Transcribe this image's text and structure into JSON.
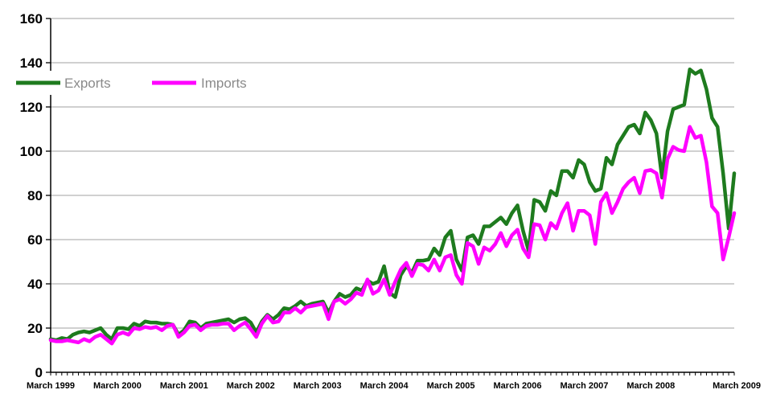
{
  "chart_data": {
    "type": "line",
    "ylim": [
      0,
      160
    ],
    "yticks": [
      0,
      20,
      40,
      60,
      80,
      100,
      120,
      140,
      160
    ],
    "grid": true,
    "legend_position": "top-left",
    "x_labels": [
      "March 1999",
      "March 2000",
      "March 2001",
      "March 2002",
      "March 2003",
      "March 2004",
      "March 2005",
      "March 2006",
      "March 2007",
      "March 2008",
      "March 2009"
    ],
    "x_start": "March 1999",
    "x_end": "March 2009",
    "series": [
      {
        "name": "Exports",
        "color": "#1e7b1e",
        "values": [
          15,
          14.5,
          15.5,
          15,
          17,
          18,
          18.5,
          18,
          19,
          20,
          17,
          15,
          20,
          20,
          19.5,
          22,
          21,
          23,
          22.5,
          22.5,
          22,
          22,
          21.5,
          17,
          19,
          23,
          22.5,
          20,
          22,
          22.5,
          23,
          23.5,
          24,
          22.5,
          24,
          24.5,
          22.5,
          18,
          23,
          26,
          24,
          26,
          29,
          28.5,
          30,
          32,
          30,
          31,
          31.5,
          32,
          27,
          32,
          35.5,
          34,
          35,
          38,
          37,
          41.5,
          40,
          41,
          48,
          36,
          34,
          44,
          48,
          45,
          50.5,
          50.5,
          51,
          56,
          53,
          61,
          64,
          51,
          46,
          61,
          62,
          58,
          66,
          66,
          68,
          70,
          67,
          72,
          75.5,
          64,
          55,
          78,
          77,
          73,
          82,
          80,
          91,
          91,
          88,
          96,
          94,
          86,
          82,
          83,
          97,
          94,
          103,
          107,
          111,
          112,
          108,
          117.5,
          114,
          108,
          88,
          109,
          119,
          120,
          121,
          137,
          135,
          136.5,
          128,
          115,
          111,
          90,
          65,
          90
        ]
      },
      {
        "name": "Imports",
        "color": "#ff00ff",
        "values": [
          14.5,
          14,
          14,
          14.5,
          14,
          13.5,
          15,
          14,
          16,
          17,
          15,
          13,
          17,
          18,
          17,
          20,
          19.5,
          20.5,
          20,
          20.5,
          19,
          21,
          21.5,
          16,
          18,
          21,
          21.5,
          19,
          21,
          21.5,
          21.5,
          22,
          22,
          19,
          21,
          22.5,
          19.5,
          16,
          22,
          25.5,
          22.5,
          23,
          27,
          27,
          29,
          27,
          29.5,
          30,
          30.5,
          31,
          24,
          32,
          33,
          31,
          33,
          36,
          35,
          42,
          35.5,
          37,
          42,
          35,
          41,
          46.5,
          49.5,
          43.5,
          49,
          48.5,
          46,
          51,
          46,
          52,
          53,
          44,
          40,
          58.5,
          57,
          49,
          56.5,
          55,
          58,
          63,
          57,
          62,
          64.5,
          56,
          52,
          67,
          66.5,
          60,
          67.5,
          65,
          72,
          76.5,
          64,
          73,
          73,
          71,
          58,
          77,
          81,
          72,
          77,
          83,
          86,
          88,
          81,
          91,
          91.5,
          90,
          79,
          96.5,
          102,
          100.5,
          100,
          111,
          106,
          107,
          95,
          75,
          72,
          51,
          61,
          72
        ]
      }
    ]
  }
}
